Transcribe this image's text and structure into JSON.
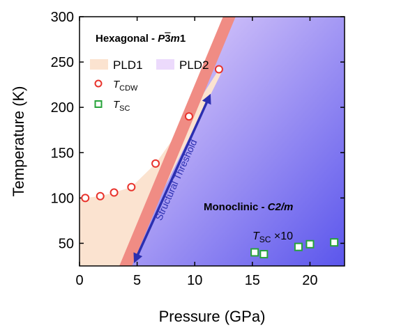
{
  "chart_data": {
    "type": "scatter",
    "xlabel": "Pressure (GPa)",
    "ylabel": "Temperature (K)",
    "xlim": [
      0,
      23
    ],
    "ylim": [
      25,
      300
    ],
    "xticks": [
      0,
      5,
      10,
      15,
      20
    ],
    "yticks": [
      50,
      100,
      150,
      200,
      250,
      300
    ],
    "regions": {
      "hexagonal": {
        "prefix": "Hexagonal - ",
        "sym1": "P",
        "sym2": "3",
        "sym3": "m",
        "sym4": "1"
      },
      "monoclinic": {
        "prefix": "Monoclinic - ",
        "sym": "C2/m"
      }
    },
    "legend": {
      "pld1": "PLD1",
      "pld2": "PLD2",
      "tcdw_main": "T",
      "tcdw_sub": "CDW",
      "tsc_main": "T",
      "tsc_sub": "SC",
      "placement": "top-left"
    },
    "threshold_label": "Structural Threshold",
    "tsc_annotation": {
      "main": "T",
      "sub": "SC",
      "suffix": " ×10"
    },
    "series": [
      {
        "name": "T_CDW",
        "marker": "circle",
        "color": "#e8322b",
        "x": [
          0.5,
          1.8,
          3.0,
          4.5,
          6.6,
          9.5,
          12.1
        ],
        "y": [
          100,
          102,
          106,
          112,
          138,
          190,
          242
        ]
      },
      {
        "name": "T_SC",
        "marker": "square",
        "color": "#27a33a",
        "x": [
          15.2,
          16.0,
          19.0,
          20.0,
          22.1
        ],
        "y": [
          40,
          38,
          46,
          49,
          51
        ]
      }
    ],
    "threshold_line": {
      "x": [
        4.0,
        13.0
      ],
      "y": [
        25,
        300
      ]
    },
    "colors": {
      "pld1": "#fbe3d0",
      "pld2_light": "#ecdafc",
      "pld2_dark": "#5b56ec",
      "threshold_band": "#f08c84",
      "arrow": "#2b2fb0"
    }
  }
}
